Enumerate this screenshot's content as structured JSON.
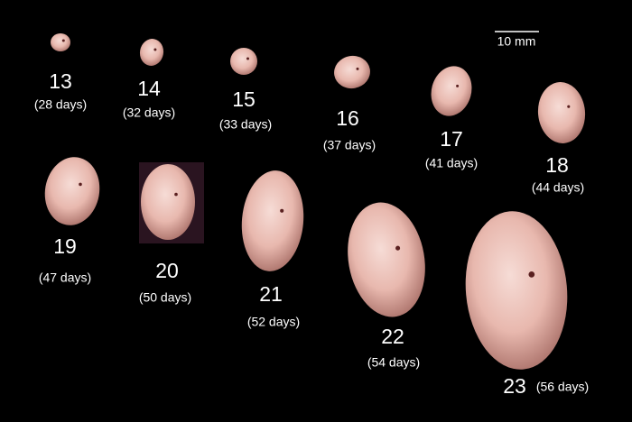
{
  "scale_bar": {
    "label": "10 mm"
  },
  "stages": [
    {
      "number": "13",
      "days": "(28 days)"
    },
    {
      "number": "14",
      "days": "(32 days)"
    },
    {
      "number": "15",
      "days": "(33 days)"
    },
    {
      "number": "16",
      "days": "(37 days)"
    },
    {
      "number": "17",
      "days": "(41 days)"
    },
    {
      "number": "18",
      "days": "(44 days)"
    },
    {
      "number": "19",
      "days": "(47 days)"
    },
    {
      "number": "20",
      "days": "(50 days)"
    },
    {
      "number": "21",
      "days": "(52 days)"
    },
    {
      "number": "22",
      "days": "(54 days)"
    },
    {
      "number": "23",
      "days": "(56 days)"
    }
  ]
}
